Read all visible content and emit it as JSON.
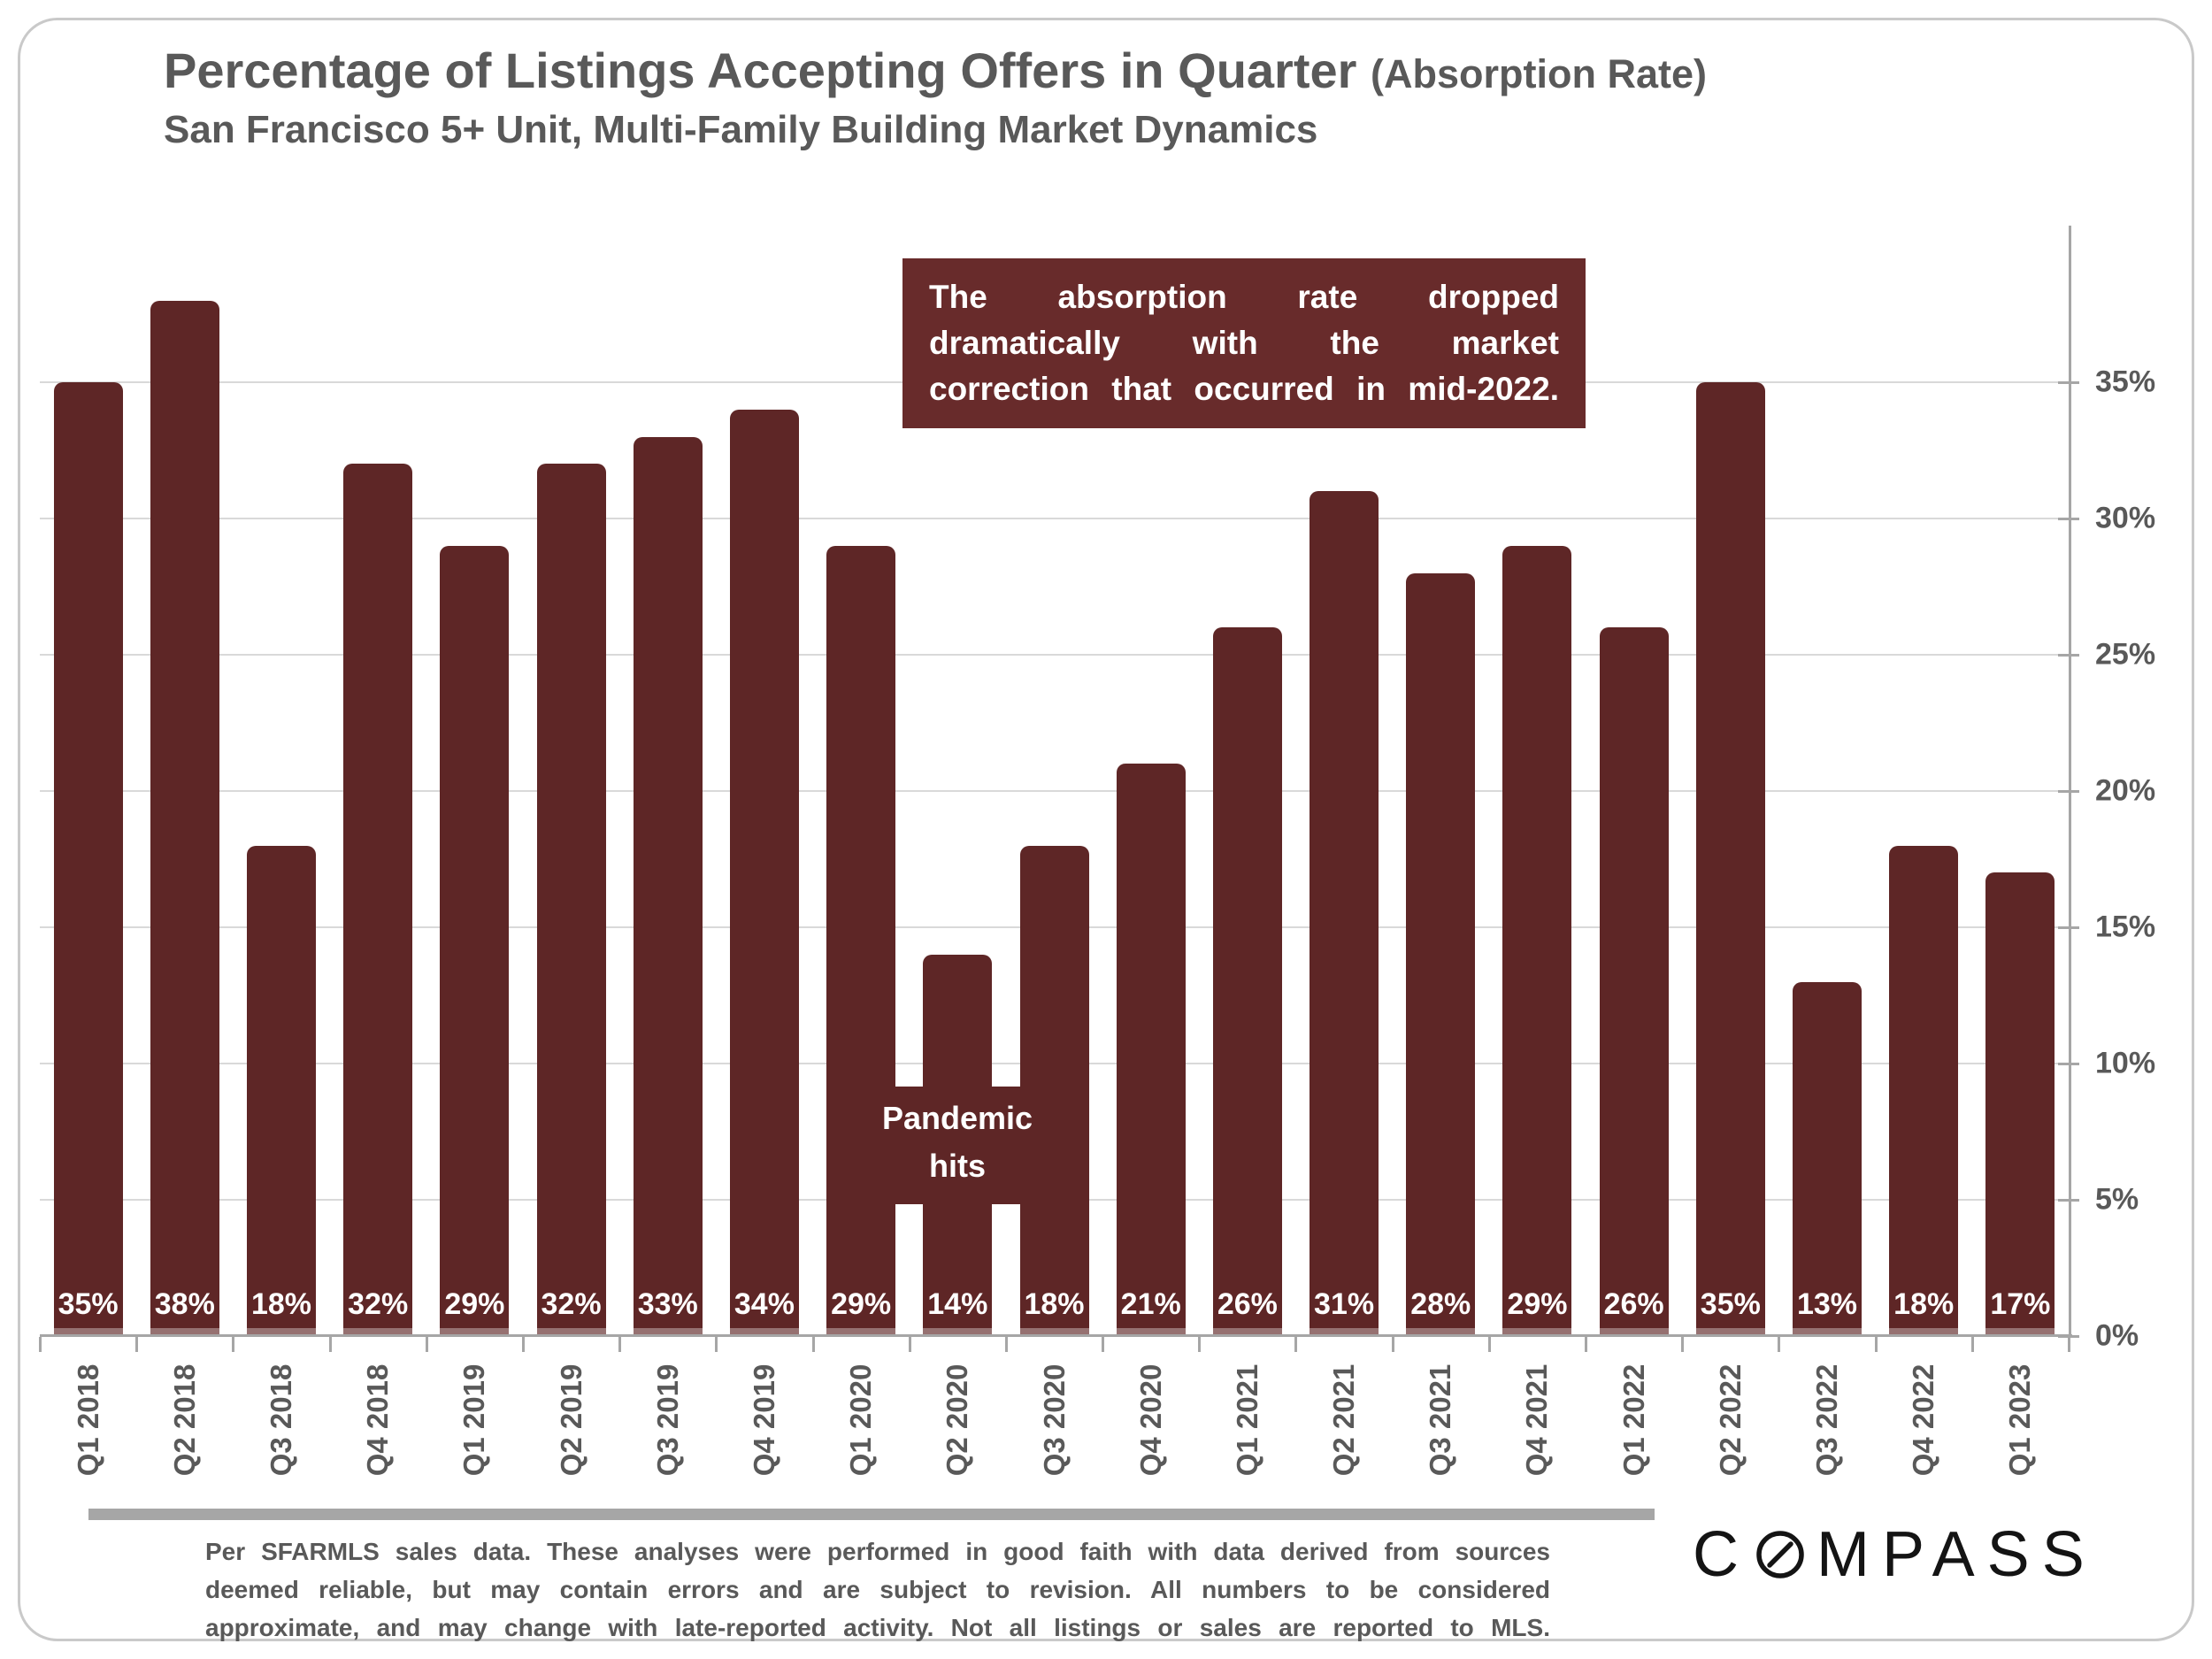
{
  "title": {
    "main": "Percentage of Listings Accepting Offers in Quarter",
    "paren": "(Absorption Rate)",
    "subtitle": "San Francisco 5+ Unit, Multi-Family Building Market Dynamics"
  },
  "callout": {
    "lines": [
      "The absorption rate dropped",
      "dramatically with the market",
      "correction that occurred in mid-2022."
    ]
  },
  "pandemic_note": {
    "lines": [
      "Pandemic",
      "hits"
    ]
  },
  "chart_data": {
    "type": "bar",
    "title": "Percentage of Listings Accepting Offers in Quarter (Absorption Rate)",
    "subtitle": "San Francisco 5+ Unit, Multi-Family Building Market Dynamics",
    "categories": [
      "Q1 2018",
      "Q2 2018",
      "Q3 2018",
      "Q4 2018",
      "Q1 2019",
      "Q2 2019",
      "Q3 2019",
      "Q4 2019",
      "Q1 2020",
      "Q2 2020",
      "Q3 2020",
      "Q4 2020",
      "Q1 2021",
      "Q2 2021",
      "Q3 2021",
      "Q4 2021",
      "Q1 2022",
      "Q2 2022",
      "Q3 2022",
      "Q4 2022",
      "Q1 2023"
    ],
    "values": [
      35,
      38,
      18,
      32,
      29,
      32,
      33,
      34,
      29,
      14,
      18,
      21,
      26,
      31,
      28,
      29,
      26,
      35,
      13,
      18,
      17
    ],
    "value_labels": [
      "35%",
      "38%",
      "18%",
      "32%",
      "29%",
      "32%",
      "33%",
      "34%",
      "29%",
      "14%",
      "18%",
      "21%",
      "26%",
      "31%",
      "28%",
      "29%",
      "26%",
      "35%",
      "13%",
      "18%",
      "17%"
    ],
    "y_ticks": [
      "0%",
      "5%",
      "10%",
      "15%",
      "20%",
      "25%",
      "30%",
      "35%"
    ],
    "y_tick_values": [
      0,
      5,
      10,
      15,
      20,
      25,
      30,
      35
    ],
    "ylim": [
      0,
      40.9
    ],
    "xlabel": "",
    "ylabel": "",
    "grid": "horizontal",
    "axis_side": "right",
    "legend": "none",
    "bar_color": "#5e2626",
    "gridline_color": "#d9d9d9",
    "axis_color": "#a6a6a6",
    "label_color": "#595959"
  },
  "footer": {
    "lines": [
      "Per SFARMLS sales data. These analyses were performed in good faith with data derived from sources",
      "deemed reliable, but may contain errors and are subject to revision. All numbers to be considered",
      "approximate, and may change with late-reported activity. Not all listings or sales are reported to MLS."
    ]
  },
  "logo": {
    "name": "COMPASS",
    "text_before": "C",
    "text_after": "MPASS"
  }
}
